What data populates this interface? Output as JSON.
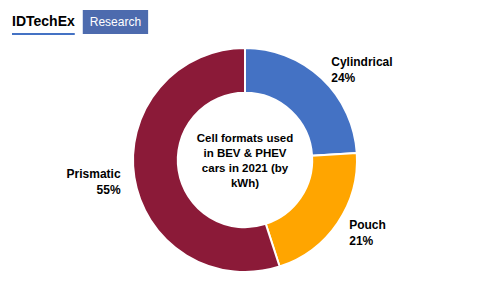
{
  "chart_data": {
    "type": "pie",
    "title": "Cell formats used\nin BEV & PHEV\ncars in 2021 (by\nkWh)",
    "categories": [
      "Cylindrical",
      "Pouch",
      "Prismatic"
    ],
    "values": [
      24,
      21,
      55
    ],
    "value_labels": [
      "24%",
      "21%",
      "55%"
    ],
    "data_labels": true,
    "colors": [
      "#4472C4",
      "#FFA500",
      "#8B1A38"
    ],
    "annotations": [
      "IDTechEx",
      "Research"
    ]
  }
}
